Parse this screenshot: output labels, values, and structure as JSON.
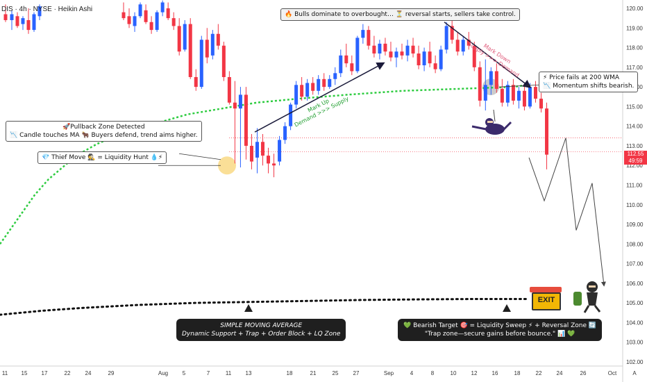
{
  "header": {
    "symbol": "DIS · 4h · NYSE · Heikin Ashi"
  },
  "price_badge": {
    "price": "112.55",
    "countdown": "49:59",
    "color": "#f23645"
  },
  "annotations": {
    "top_banner": "🔥 Bulls dominate to overbought… ⏳ reversal starts, sellers take control.",
    "pullback_line1": "🚀Pullback Zone Detected",
    "pullback_line2": "📉 Candle touches MA 🐂 Buyers defend, trend aims higher.",
    "thief_move": "💎 Thief Move 🕵️ = Liquidity Hunt 💧⚡",
    "wma_line1": "⚡ Price fails at 200 WMA",
    "wma_line2": "📉 Momentum shifts bearish.",
    "markup_line1": "Mark Up",
    "markup_line2": "Demand >>> Supply",
    "markdown_line1": "Mark Down",
    "markdown_line2": "Supply >>> Demand",
    "sma_line1": "SIMPLE MOVING AVERAGE",
    "sma_line2": "Dynamic Support + Trap + Order Block + LQ Zone",
    "target_line1": "💚 Bearish Target 🎯 = Liquidity Sweep ⚡ + Reversal Zone 🔄",
    "target_line2": "\"Trap zone—secure gains before bounce.\" 📊 💚",
    "exit_sign": "EXIT",
    "axis_corner": "A"
  },
  "colors": {
    "bull": "#2962ff",
    "bear": "#f23645",
    "wma": "#2ecc40",
    "sma": "#111111",
    "projection": "#444444"
  },
  "chart_data": {
    "type": "candlestick",
    "ylim": [
      102,
      120.5
    ],
    "yticks": [
      102,
      103,
      104,
      105,
      106,
      107,
      108,
      109,
      110,
      111,
      112,
      113,
      114,
      115,
      116,
      117,
      118,
      119,
      120
    ],
    "ytick_labels": [
      "102.00",
      "103.00",
      "104.00",
      "105.00",
      "106.00",
      "107.00",
      "108.00",
      "109.00",
      "110.00",
      "111.00",
      "112.00",
      "113.00",
      "114.00",
      "115.00",
      "116.00",
      "117.00",
      "118.00",
      "119.00",
      "120.00"
    ],
    "x_tick_labels": [
      "11",
      "15",
      "17",
      "22",
      "24",
      "29",
      "Aug",
      "5",
      "7",
      "11",
      "13",
      "18",
      "21",
      "25",
      "27",
      "Sep",
      "4",
      "8",
      "10",
      "12",
      "16",
      "18",
      "22",
      "24",
      "26",
      "Oct"
    ],
    "last_price": 112.55,
    "reference_lines": [
      112.7,
      113.4
    ],
    "candles": [
      {
        "o": 119.8,
        "h": 120.3,
        "l": 119.4,
        "c": 119.5
      },
      {
        "o": 119.6,
        "h": 120.0,
        "l": 119.0,
        "c": 119.2
      },
      {
        "o": 119.1,
        "h": 119.8,
        "l": 118.8,
        "c": 119.6
      },
      {
        "o": 119.6,
        "h": 120.3,
        "l": 119.5,
        "c": 120.2
      },
      {
        "o": 119.9,
        "h": 120.2,
        "l": 119.2,
        "c": 119.3
      },
      {
        "o": 119.3,
        "h": 119.6,
        "l": 118.7,
        "c": 118.9
      },
      {
        "o": 118.9,
        "h": 119.9,
        "l": 118.8,
        "c": 119.8
      },
      {
        "o": 119.8,
        "h": 120.4,
        "l": 119.6,
        "c": 120.3
      },
      {
        "o": 120.0,
        "h": 120.3,
        "l": 119.4,
        "c": 119.5
      },
      {
        "o": 119.5,
        "h": 119.8,
        "l": 118.9,
        "c": 119.1
      },
      {
        "o": 119.1,
        "h": 119.5,
        "l": 117.6,
        "c": 117.8
      },
      {
        "o": 117.9,
        "h": 119.4,
        "l": 117.8,
        "c": 119.2
      },
      {
        "o": 119.2,
        "h": 119.5,
        "l": 116.4,
        "c": 116.5
      },
      {
        "o": 116.5,
        "h": 116.9,
        "l": 115.8,
        "c": 116.0
      },
      {
        "o": 116.0,
        "h": 118.6,
        "l": 115.9,
        "c": 118.4
      },
      {
        "o": 118.4,
        "h": 119.0,
        "l": 117.2,
        "c": 117.5
      },
      {
        "o": 117.6,
        "h": 118.9,
        "l": 117.4,
        "c": 118.7
      },
      {
        "o": 118.7,
        "h": 119.2,
        "l": 117.9,
        "c": 118.1
      },
      {
        "o": 118.1,
        "h": 118.3,
        "l": 116.3,
        "c": 116.5
      },
      {
        "o": 116.5,
        "h": 116.8,
        "l": 115.1,
        "c": 115.2
      },
      {
        "o": 115.2,
        "h": 116.3,
        "l": 112.1,
        "c": 114.9
      },
      {
        "o": 114.9,
        "h": 116.0,
        "l": 111.9,
        "c": 115.6
      },
      {
        "o": 115.6,
        "h": 116.0,
        "l": 112.3,
        "c": 113.0
      },
      {
        "o": 113.0,
        "h": 113.6,
        "l": 111.8,
        "c": 112.2
      },
      {
        "o": 112.4,
        "h": 113.9,
        "l": 111.6,
        "c": 113.2
      },
      {
        "o": 113.2,
        "h": 113.6,
        "l": 112.0,
        "c": 112.5
      },
      {
        "o": 112.5,
        "h": 112.9,
        "l": 111.6,
        "c": 112.1
      },
      {
        "o": 112.1,
        "h": 112.6,
        "l": 111.4,
        "c": 112.0
      },
      {
        "o": 112.2,
        "h": 113.5,
        "l": 112.0,
        "c": 113.3
      },
      {
        "o": 113.3,
        "h": 114.2,
        "l": 113.1,
        "c": 114.0
      },
      {
        "o": 114.0,
        "h": 115.2,
        "l": 113.8,
        "c": 115.1
      },
      {
        "o": 115.1,
        "h": 116.3,
        "l": 114.9,
        "c": 116.1
      },
      {
        "o": 116.1,
        "h": 116.5,
        "l": 115.3,
        "c": 115.5
      },
      {
        "o": 115.5,
        "h": 116.4,
        "l": 115.3,
        "c": 116.2
      },
      {
        "o": 116.2,
        "h": 116.5,
        "l": 115.6,
        "c": 115.8
      },
      {
        "o": 115.8,
        "h": 116.6,
        "l": 115.6,
        "c": 116.4
      },
      {
        "o": 116.4,
        "h": 116.7,
        "l": 115.8,
        "c": 116.0
      },
      {
        "o": 116.0,
        "h": 116.6,
        "l": 115.9,
        "c": 116.4
      },
      {
        "o": 116.4,
        "h": 117.0,
        "l": 116.1,
        "c": 116.7
      },
      {
        "o": 116.7,
        "h": 117.9,
        "l": 116.5,
        "c": 117.6
      },
      {
        "o": 117.6,
        "h": 118.2,
        "l": 117.0,
        "c": 117.2
      },
      {
        "o": 117.2,
        "h": 117.6,
        "l": 116.6,
        "c": 116.8
      },
      {
        "o": 116.8,
        "h": 118.6,
        "l": 116.7,
        "c": 118.5
      },
      {
        "o": 118.5,
        "h": 119.2,
        "l": 118.2,
        "c": 118.9
      },
      {
        "o": 118.9,
        "h": 119.1,
        "l": 117.9,
        "c": 118.1
      },
      {
        "o": 118.1,
        "h": 118.6,
        "l": 117.5,
        "c": 117.7
      },
      {
        "o": 117.7,
        "h": 118.4,
        "l": 117.4,
        "c": 118.2
      },
      {
        "o": 118.2,
        "h": 118.5,
        "l": 117.6,
        "c": 117.8
      },
      {
        "o": 117.8,
        "h": 118.3,
        "l": 117.3,
        "c": 117.5
      },
      {
        "o": 117.5,
        "h": 118.0,
        "l": 117.0,
        "c": 117.8
      },
      {
        "o": 117.8,
        "h": 118.2,
        "l": 117.4,
        "c": 117.6
      },
      {
        "o": 117.6,
        "h": 118.4,
        "l": 117.3,
        "c": 118.1
      },
      {
        "o": 118.1,
        "h": 118.5,
        "l": 117.5,
        "c": 117.7
      },
      {
        "o": 117.7,
        "h": 118.1,
        "l": 116.9,
        "c": 117.1
      },
      {
        "o": 117.1,
        "h": 118.0,
        "l": 116.8,
        "c": 117.8
      },
      {
        "o": 117.8,
        "h": 118.3,
        "l": 117.0,
        "c": 117.2
      },
      {
        "o": 117.2,
        "h": 117.6,
        "l": 116.7,
        "c": 116.9
      },
      {
        "o": 116.9,
        "h": 118.1,
        "l": 116.8,
        "c": 117.9
      },
      {
        "o": 117.9,
        "h": 119.3,
        "l": 117.7,
        "c": 119.1
      },
      {
        "o": 119.1,
        "h": 119.4,
        "l": 118.2,
        "c": 118.4
      },
      {
        "o": 118.4,
        "h": 118.8,
        "l": 117.6,
        "c": 117.8
      },
      {
        "o": 117.8,
        "h": 118.6,
        "l": 117.6,
        "c": 118.4
      },
      {
        "o": 118.4,
        "h": 118.8,
        "l": 117.9,
        "c": 118.1
      },
      {
        "o": 118.1,
        "h": 118.3,
        "l": 116.8,
        "c": 117.0
      },
      {
        "o": 117.0,
        "h": 117.3,
        "l": 115.0,
        "c": 115.3
      },
      {
        "o": 115.3,
        "h": 117.4,
        "l": 114.8,
        "c": 116.1
      },
      {
        "o": 116.1,
        "h": 117.0,
        "l": 115.6,
        "c": 116.8
      },
      {
        "o": 116.8,
        "h": 117.2,
        "l": 115.7,
        "c": 115.9
      },
      {
        "o": 115.9,
        "h": 116.4,
        "l": 115.0,
        "c": 115.2
      },
      {
        "o": 115.2,
        "h": 116.3,
        "l": 115.0,
        "c": 116.1
      },
      {
        "o": 116.1,
        "h": 116.4,
        "l": 115.1,
        "c": 115.3
      },
      {
        "o": 115.3,
        "h": 116.0,
        "l": 114.9,
        "c": 115.8
      },
      {
        "o": 115.8,
        "h": 116.1,
        "l": 114.8,
        "c": 115.0
      },
      {
        "o": 115.0,
        "h": 116.2,
        "l": 114.9,
        "c": 116.0
      },
      {
        "o": 116.0,
        "h": 116.3,
        "l": 115.2,
        "c": 115.4
      },
      {
        "o": 115.4,
        "h": 115.7,
        "l": 114.7,
        "c": 114.9
      },
      {
        "o": 114.9,
        "h": 115.2,
        "l": 111.8,
        "c": 112.55
      }
    ],
    "wma_200": [
      [
        0,
        108.0
      ],
      [
        10,
        108.5
      ],
      [
        20,
        109.0
      ],
      [
        30,
        109.5
      ],
      [
        40,
        110.0
      ],
      [
        50,
        110.5
      ],
      [
        60,
        110.9
      ],
      [
        70,
        111.3
      ],
      [
        80,
        111.6
      ],
      [
        90,
        111.9
      ],
      [
        100,
        112.2
      ],
      [
        120,
        112.7
      ],
      [
        140,
        113.1
      ],
      [
        160,
        113.4
      ],
      [
        190,
        113.8
      ],
      [
        230,
        114.2
      ],
      [
        270,
        114.6
      ],
      [
        320,
        114.9
      ],
      [
        370,
        115.2
      ],
      [
        430,
        115.4
      ],
      [
        500,
        115.6
      ],
      [
        580,
        115.8
      ],
      [
        660,
        115.9
      ],
      [
        740,
        116.0
      ],
      [
        760,
        116.1
      ]
    ],
    "sma_dotted": [
      [
        0,
        104.4
      ],
      [
        60,
        104.6
      ],
      [
        120,
        104.75
      ],
      [
        200,
        104.9
      ],
      [
        280,
        105.0
      ],
      [
        360,
        105.05
      ],
      [
        440,
        105.1
      ],
      [
        520,
        105.15
      ],
      [
        600,
        105.18
      ],
      [
        680,
        105.2
      ],
      [
        760,
        105.2
      ]
    ],
    "projection_path": [
      [
        762,
        112.4
      ],
      [
        784,
        110.2
      ],
      [
        815,
        113.4
      ],
      [
        830,
        108.7
      ],
      [
        853,
        111.1
      ],
      [
        870,
        105.9
      ]
    ]
  }
}
